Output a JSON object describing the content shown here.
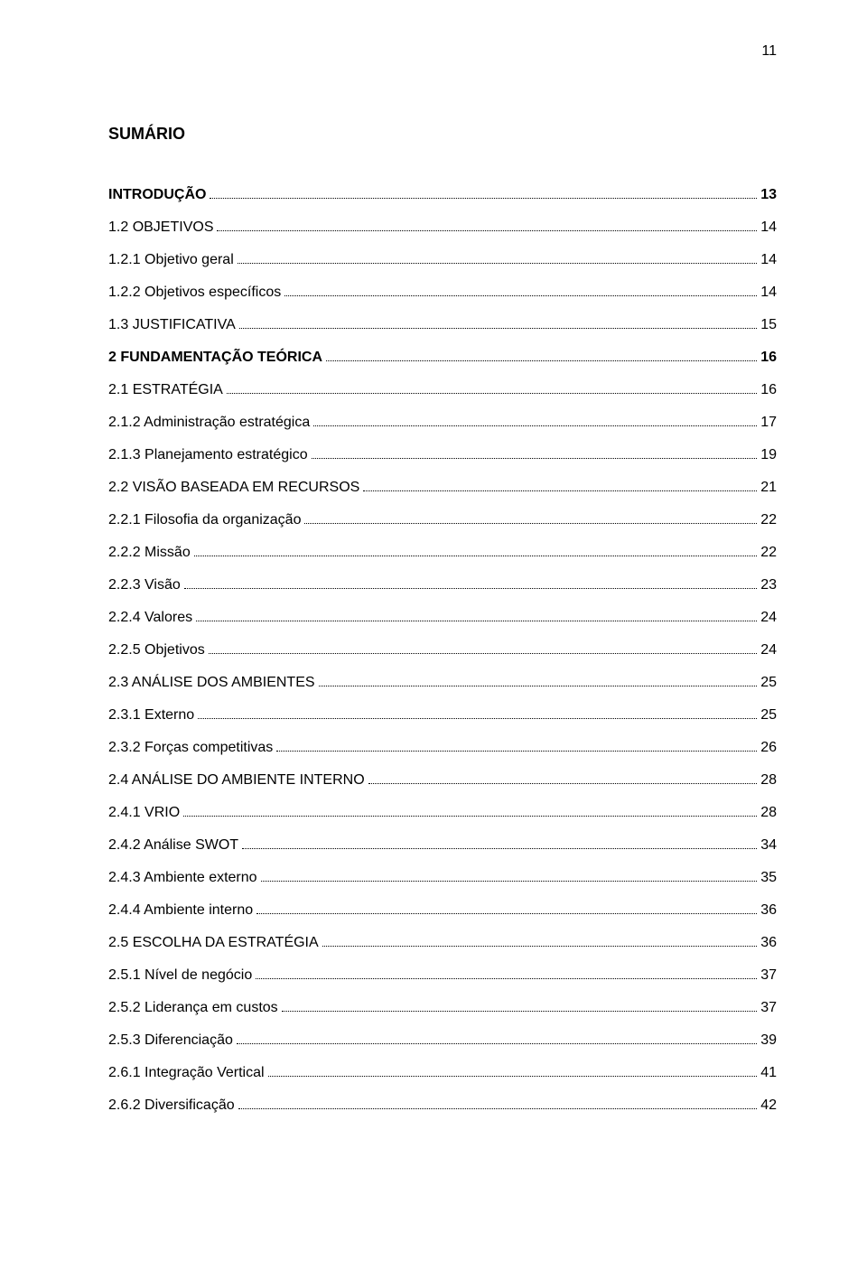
{
  "page_number": "11",
  "title": "SUMÁRIO",
  "font": {
    "family": "Arial",
    "title_size_pt": 14,
    "body_size_pt": 12,
    "title_weight": "bold"
  },
  "colors": {
    "text": "#000000",
    "background": "#ffffff",
    "leader": "#000000"
  },
  "entries": [
    {
      "label": "INTRODUÇÃO",
      "page": "13",
      "bold": true
    },
    {
      "label": "1.2 OBJETIVOS",
      "page": "14",
      "bold": false
    },
    {
      "label": "1.2.1 Objetivo geral",
      "page": "14",
      "bold": false
    },
    {
      "label": "1.2.2 Objetivos específicos",
      "page": "14",
      "bold": false
    },
    {
      "label": "1.3 JUSTIFICATIVA",
      "page": "15",
      "bold": false
    },
    {
      "label": "2 FUNDAMENTAÇÃO TEÓRICA",
      "page": "16",
      "bold": true
    },
    {
      "label": "2.1 ESTRATÉGIA",
      "page": "16",
      "bold": false
    },
    {
      "label": "2.1.2 Administração estratégica",
      "page": "17",
      "bold": false
    },
    {
      "label": "2.1.3 Planejamento estratégico",
      "page": "19",
      "bold": false
    },
    {
      "label": "2.2 VISÃO BASEADA EM RECURSOS",
      "page": "21",
      "bold": false
    },
    {
      "label": "2.2.1 Filosofia da organização",
      "page": "22",
      "bold": false
    },
    {
      "label": "2.2.2 Missão",
      "page": "22",
      "bold": false
    },
    {
      "label": "2.2.3 Visão",
      "page": "23",
      "bold": false
    },
    {
      "label": "2.2.4 Valores",
      "page": "24",
      "bold": false
    },
    {
      "label": "2.2.5 Objetivos",
      "page": "24",
      "bold": false
    },
    {
      "label": "2.3 ANÁLISE DOS AMBIENTES",
      "page": "25",
      "bold": false
    },
    {
      "label": "2.3.1 Externo",
      "page": "25",
      "bold": false
    },
    {
      "label": "2.3.2 Forças competitivas",
      "page": "26",
      "bold": false
    },
    {
      "label": "2.4 ANÁLISE DO AMBIENTE INTERNO",
      "page": "28",
      "bold": false
    },
    {
      "label": "2.4.1 VRIO",
      "page": "28",
      "bold": false
    },
    {
      "label": "2.4.2 Análise SWOT",
      "page": "34",
      "bold": false
    },
    {
      "label": "2.4.3 Ambiente externo",
      "page": "35",
      "bold": false
    },
    {
      "label": "2.4.4 Ambiente interno",
      "page": "36",
      "bold": false
    },
    {
      "label": "2.5 ESCOLHA DA ESTRATÉGIA",
      "page": "36",
      "bold": false
    },
    {
      "label": "2.5.1 Nível de negócio",
      "page": "37",
      "bold": false
    },
    {
      "label": "2.5.2  Liderança em custos",
      "page": "37",
      "bold": false
    },
    {
      "label": "2.5.3 Diferenciação",
      "page": "39",
      "bold": false
    },
    {
      "label": "2.6.1 Integração Vertical",
      "page": "41",
      "bold": false
    },
    {
      "label": "2.6.2 Diversificação",
      "page": "42",
      "bold": false
    }
  ]
}
